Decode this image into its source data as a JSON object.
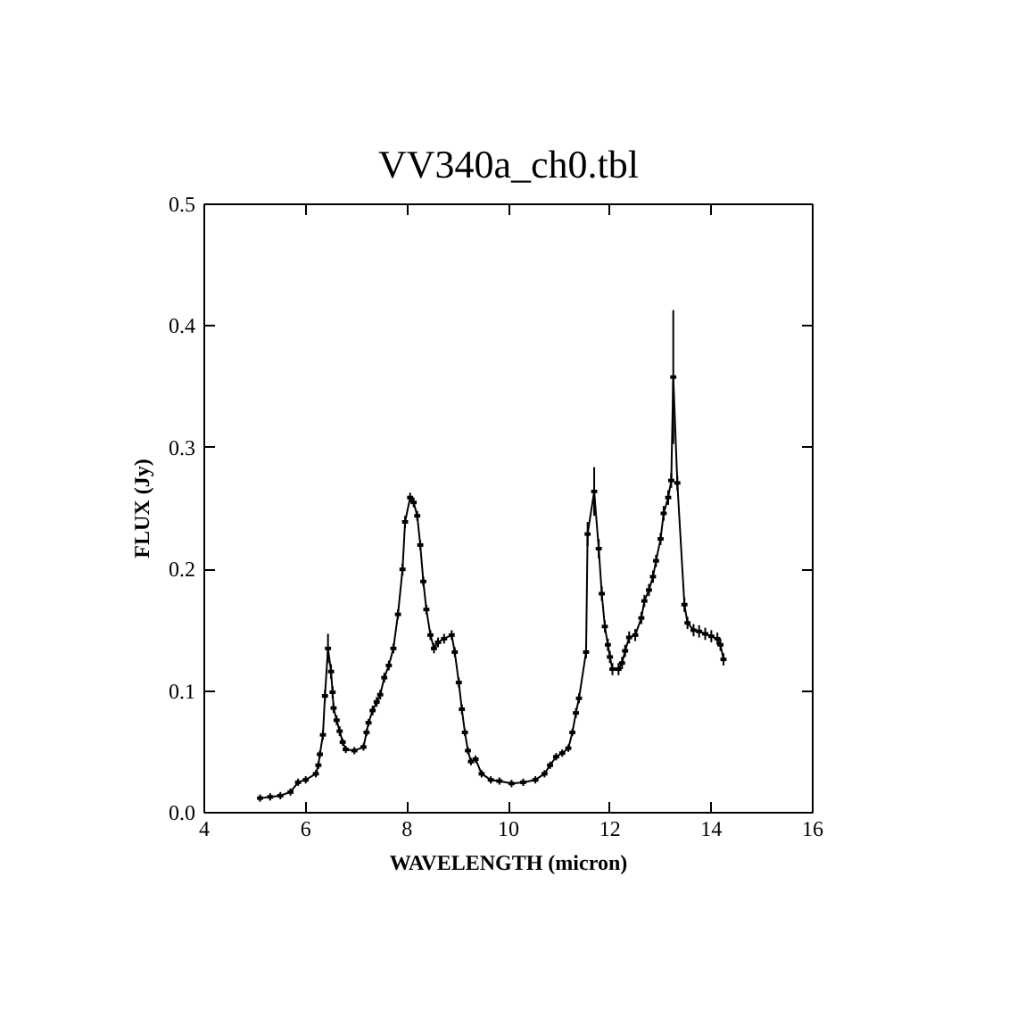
{
  "chart_data": {
    "type": "line",
    "title": "VV340a_ch0.tbl",
    "xlabel": "WAVELENGTH (micron)",
    "ylabel": "FLUX (Jy)",
    "x": [
      5.1,
      5.3,
      5.5,
      5.7,
      5.85,
      6.0,
      6.2,
      6.25,
      6.28,
      6.34,
      6.38,
      6.44,
      6.5,
      6.53,
      6.55,
      6.61,
      6.67,
      6.73,
      6.79,
      6.96,
      7.14,
      7.2,
      7.24,
      7.32,
      7.4,
      7.47,
      7.55,
      7.64,
      7.73,
      7.82,
      7.91,
      7.96,
      8.06,
      8.13,
      8.2,
      8.26,
      8.32,
      8.38,
      8.46,
      8.53,
      8.61,
      8.73,
      8.88,
      8.94,
      9.02,
      9.08,
      9.14,
      9.2,
      9.26,
      9.35,
      9.47,
      9.65,
      9.82,
      10.06,
      10.29,
      10.53,
      10.71,
      10.82,
      10.94,
      11.06,
      11.18,
      11.26,
      11.33,
      11.39,
      11.53,
      11.56,
      11.69,
      11.78,
      11.84,
      11.9,
      11.96,
      12.0,
      12.05,
      12.17,
      12.24,
      12.3,
      12.38,
      12.5,
      12.62,
      12.68,
      12.77,
      12.85,
      12.91,
      13.0,
      13.06,
      13.15,
      13.21,
      13.25,
      13.33,
      13.47,
      13.53,
      13.65,
      13.76,
      13.88,
      14.0,
      14.12,
      14.18,
      14.24
    ],
    "series": [
      {
        "color": "#000000",
        "values": [
          0.012,
          0.013,
          0.014,
          0.017,
          0.025,
          0.027,
          0.032,
          0.039,
          0.048,
          0.064,
          0.096,
          0.135,
          0.116,
          0.099,
          0.086,
          0.076,
          0.067,
          0.058,
          0.052,
          0.051,
          0.054,
          0.066,
          0.074,
          0.084,
          0.091,
          0.097,
          0.111,
          0.121,
          0.135,
          0.163,
          0.2,
          0.239,
          0.259,
          0.255,
          0.244,
          0.22,
          0.19,
          0.167,
          0.146,
          0.135,
          0.14,
          0.143,
          0.146,
          0.132,
          0.107,
          0.085,
          0.066,
          0.051,
          0.042,
          0.044,
          0.032,
          0.027,
          0.026,
          0.024,
          0.025,
          0.027,
          0.032,
          0.039,
          0.046,
          0.049,
          0.053,
          0.066,
          0.082,
          0.094,
          0.132,
          0.229,
          0.264,
          0.217,
          0.18,
          0.153,
          0.138,
          0.128,
          0.118,
          0.118,
          0.123,
          0.133,
          0.144,
          0.146,
          0.16,
          0.174,
          0.183,
          0.194,
          0.207,
          0.225,
          0.246,
          0.259,
          0.273,
          0.358,
          0.271,
          0.171,
          0.156,
          0.15,
          0.149,
          0.147,
          0.145,
          0.143,
          0.138,
          0.126
        ],
        "errors": [
          0.003,
          0.003,
          0.003,
          0.003,
          0.003,
          0.003,
          0.003,
          0.003,
          0.003,
          0.004,
          0.005,
          0.012,
          0.006,
          0.005,
          0.004,
          0.004,
          0.004,
          0.003,
          0.003,
          0.003,
          0.003,
          0.003,
          0.003,
          0.004,
          0.004,
          0.004,
          0.004,
          0.004,
          0.004,
          0.004,
          0.005,
          0.005,
          0.004,
          0.004,
          0.004,
          0.004,
          0.004,
          0.004,
          0.004,
          0.004,
          0.004,
          0.004,
          0.004,
          0.004,
          0.004,
          0.004,
          0.003,
          0.003,
          0.003,
          0.003,
          0.003,
          0.003,
          0.003,
          0.003,
          0.003,
          0.003,
          0.003,
          0.003,
          0.003,
          0.003,
          0.003,
          0.003,
          0.004,
          0.004,
          0.005,
          0.01,
          0.02,
          0.008,
          0.006,
          0.005,
          0.005,
          0.005,
          0.005,
          0.005,
          0.005,
          0.005,
          0.005,
          0.005,
          0.005,
          0.005,
          0.005,
          0.005,
          0.005,
          0.005,
          0.006,
          0.006,
          0.006,
          0.055,
          0.006,
          0.006,
          0.005,
          0.005,
          0.005,
          0.005,
          0.005,
          0.005,
          0.005,
          0.005
        ],
        "xerrors": [
          0.06,
          0.06,
          0.06,
          0.06,
          0.06,
          0.06,
          0.06,
          0.06,
          0.06,
          0.06,
          0.06,
          0.06,
          0.06,
          0.06,
          0.06,
          0.06,
          0.06,
          0.06,
          0.06,
          0.06,
          0.06,
          0.06,
          0.06,
          0.06,
          0.06,
          0.06,
          0.06,
          0.06,
          0.06,
          0.06,
          0.06,
          0.06,
          0.06,
          0.06,
          0.06,
          0.06,
          0.06,
          0.06,
          0.06,
          0.06,
          0.06,
          0.06,
          0.06,
          0.06,
          0.06,
          0.06,
          0.06,
          0.06,
          0.06,
          0.06,
          0.06,
          0.06,
          0.06,
          0.06,
          0.06,
          0.06,
          0.06,
          0.06,
          0.06,
          0.06,
          0.06,
          0.06,
          0.06,
          0.06,
          0.06,
          0.06,
          0.06,
          0.06,
          0.06,
          0.06,
          0.06,
          0.06,
          0.06,
          0.06,
          0.06,
          0.06,
          0.06,
          0.06,
          0.06,
          0.06,
          0.06,
          0.06,
          0.06,
          0.06,
          0.06,
          0.06,
          0.06,
          0.06,
          0.06,
          0.06,
          0.06,
          0.06,
          0.06,
          0.06,
          0.06,
          0.06,
          0.06,
          0.06
        ]
      }
    ],
    "xlim": [
      4,
      16
    ],
    "ylim": [
      0,
      0.5
    ],
    "xticks": [
      4,
      6,
      8,
      10,
      12,
      14,
      16
    ],
    "yticks": [
      {
        "value": 0,
        "label": "0.0"
      },
      {
        "value": 0.1,
        "label": "0.1"
      },
      {
        "value": 0.2,
        "label": "0.2"
      },
      {
        "value": 0.3,
        "label": "0.3"
      },
      {
        "value": 0.4,
        "label": "0.4"
      },
      {
        "value": 0.5,
        "label": "0.5"
      }
    ],
    "grid": false,
    "marker": "none",
    "line_style": "solid"
  }
}
